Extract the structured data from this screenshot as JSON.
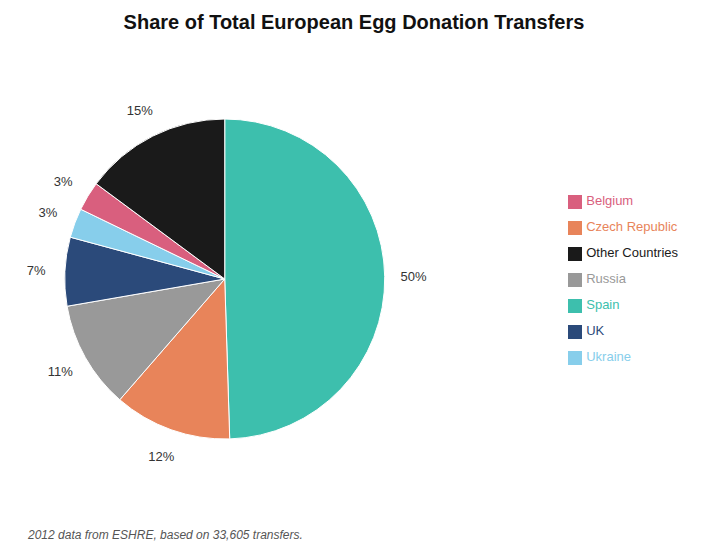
{
  "chart_data": {
    "type": "pie",
    "title": "Share of Total European Egg Donation Transfers",
    "annotations": [
      "2012 data from ESHRE, based on 33,605 transfers."
    ],
    "categories": [
      "Spain",
      "Czech Republic",
      "Russia",
      "UK",
      "Ukraine",
      "Belgium",
      "Other Countries"
    ],
    "values": [
      50,
      12,
      11,
      7,
      3,
      3,
      15
    ],
    "value_labels": [
      "50%",
      "12%",
      "11%",
      "7%",
      "3%",
      "3%",
      "15%"
    ],
    "colors": [
      "#3dbfad",
      "#e8845a",
      "#999999",
      "#2b4a7a",
      "#87ceeb",
      "#d95f7e",
      "#1a1a1a"
    ],
    "data_labels": true,
    "legend": "right"
  }
}
